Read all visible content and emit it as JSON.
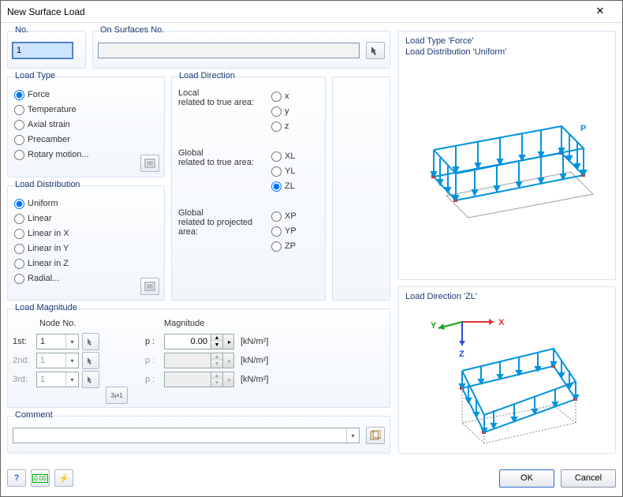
{
  "window": {
    "title": "New Surface Load"
  },
  "no_group": {
    "label": "No.",
    "value": "1"
  },
  "on_surfaces": {
    "label": "On Surfaces No.",
    "value": ""
  },
  "load_type": {
    "title": "Load Type",
    "options": [
      "Force",
      "Temperature",
      "Axial strain",
      "Precamber",
      "Rotary motion..."
    ],
    "selected": "Force"
  },
  "load_distribution": {
    "title": "Load Distribution",
    "options": [
      "Uniform",
      "Linear",
      "Linear in X",
      "Linear in Y",
      "Linear in Z",
      "Radial..."
    ],
    "selected": "Uniform"
  },
  "load_direction": {
    "title": "Load Direction",
    "local_label_l1": "Local",
    "local_label_l2": "related to true area:",
    "local_opts": [
      "x",
      "y",
      "z"
    ],
    "gtrue_label_l1": "Global",
    "gtrue_label_l2": "related to true area:",
    "gtrue_opts": [
      "XL",
      "YL",
      "ZL"
    ],
    "gproj_label_l1": "Global",
    "gproj_label_l2": "related to projected",
    "gproj_label_l3": "area:",
    "gproj_opts": [
      "XP",
      "YP",
      "ZP"
    ],
    "selected": "ZL"
  },
  "load_magnitude": {
    "title": "Load Magnitude",
    "node_header": "Node No.",
    "mag_header": "Magnitude",
    "rows": [
      {
        "ord": "1st:",
        "node": "1",
        "prefix": "p :",
        "value": "0.00",
        "unit": "[kN/m²]",
        "enabled": true
      },
      {
        "ord": "2nd:",
        "node": "1",
        "prefix": "p :",
        "value": "",
        "unit": "[kN/m²]",
        "enabled": false
      },
      {
        "ord": "3rd:",
        "node": "1",
        "prefix": "p :",
        "value": "",
        "unit": "[kN/m²]",
        "enabled": false
      }
    ],
    "multi_btn": "3⇄1"
  },
  "comment": {
    "title": "Comment",
    "value": ""
  },
  "preview_top": {
    "title_l1": "Load Type 'Force'",
    "title_l2": "Load Distribution 'Uniform'",
    "P": "P",
    "colors": {
      "arrow": "#0093dd",
      "rect": "#0093dd",
      "shadow": "#9aa0a6",
      "node": "#d82a2a"
    }
  },
  "preview_bottom": {
    "title": "Load Direction 'ZL'",
    "axes": {
      "X": "X",
      "Y": "Y",
      "Z": "Z"
    },
    "colors": {
      "x": "#e03030",
      "y": "#19a319",
      "z": "#2a4bd8",
      "arrow": "#0093dd",
      "rect": "#0093dd",
      "shadow": "#9aa0a6",
      "node": "#d82a2a",
      "proj": "#888"
    }
  },
  "buttons": {
    "ok": "OK",
    "cancel": "Cancel"
  }
}
